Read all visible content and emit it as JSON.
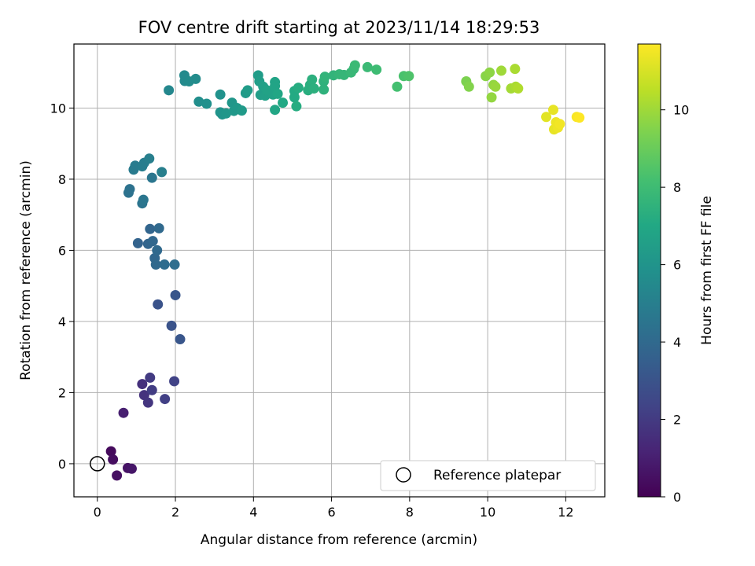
{
  "chart_data": {
    "type": "scatter",
    "title": "FOV centre drift starting at 2023/11/14 18:29:53",
    "xlabel": "Angular distance from reference (arcmin)",
    "ylabel": "Rotation from reference (arcmin)",
    "xlim": [
      -0.6,
      13.0
    ],
    "ylim": [
      -0.93,
      11.8
    ],
    "xticks": [
      0,
      2,
      4,
      6,
      8,
      10,
      12
    ],
    "yticks": [
      0,
      2,
      4,
      6,
      8,
      10
    ],
    "grid": true,
    "legend": {
      "placement": "lower-right",
      "entries": [
        "Reference platepar"
      ]
    },
    "colorbar": {
      "label": "Hours from first FF file",
      "range": [
        0,
        11.7
      ],
      "ticks": [
        0,
        2,
        4,
        6,
        8,
        10
      ],
      "colormap": "viridis"
    },
    "reference_point": {
      "x": 0,
      "y": 0
    },
    "series": [
      {
        "points": [
          [
            0.35,
            0.35,
            0.3
          ],
          [
            0.4,
            0.12,
            0.4
          ],
          [
            0.5,
            -0.33,
            0.5
          ],
          [
            0.78,
            -0.12,
            0.6
          ],
          [
            0.88,
            -0.14,
            0.7
          ],
          [
            0.67,
            1.43,
            1.0
          ],
          [
            1.15,
            2.24,
            1.6
          ],
          [
            1.2,
            1.93,
            1.7
          ],
          [
            1.3,
            1.72,
            1.8
          ],
          [
            1.35,
            2.42,
            2.0
          ],
          [
            1.4,
            2.07,
            2.1
          ],
          [
            1.73,
            1.82,
            2.2
          ],
          [
            1.97,
            2.32,
            2.3
          ],
          [
            1.55,
            4.48,
            3.0
          ],
          [
            1.9,
            3.88,
            3.0
          ],
          [
            2.0,
            4.74,
            3.1
          ],
          [
            2.12,
            3.5,
            3.1
          ],
          [
            1.04,
            6.2,
            3.7
          ],
          [
            1.3,
            6.18,
            3.8
          ],
          [
            1.35,
            6.6,
            3.8
          ],
          [
            1.42,
            6.26,
            3.9
          ],
          [
            1.47,
            5.78,
            3.9
          ],
          [
            1.5,
            5.6,
            4.0
          ],
          [
            1.53,
            6.0,
            4.0
          ],
          [
            1.58,
            6.62,
            4.0
          ],
          [
            1.72,
            5.6,
            4.1
          ],
          [
            1.98,
            5.6,
            4.2
          ],
          [
            0.8,
            7.62,
            4.4
          ],
          [
            0.83,
            7.72,
            4.4
          ],
          [
            1.15,
            7.32,
            4.5
          ],
          [
            1.18,
            7.42,
            4.6
          ],
          [
            1.4,
            8.04,
            4.6
          ],
          [
            0.93,
            8.27,
            4.8
          ],
          [
            0.97,
            8.38,
            4.8
          ],
          [
            1.15,
            8.36,
            4.9
          ],
          [
            1.2,
            8.46,
            4.9
          ],
          [
            1.33,
            8.58,
            5.0
          ],
          [
            1.65,
            8.2,
            5.0
          ],
          [
            1.83,
            10.5,
            5.4
          ],
          [
            2.23,
            10.92,
            5.5
          ],
          [
            2.24,
            10.76,
            5.5
          ],
          [
            2.35,
            10.75,
            5.6
          ],
          [
            2.52,
            10.82,
            5.6
          ],
          [
            2.6,
            10.18,
            5.7
          ],
          [
            2.8,
            10.12,
            5.8
          ],
          [
            3.15,
            10.38,
            5.9
          ],
          [
            3.15,
            9.88,
            6.0
          ],
          [
            3.2,
            9.82,
            6.0
          ],
          [
            3.3,
            9.85,
            6.1
          ],
          [
            3.45,
            10.15,
            6.1
          ],
          [
            3.5,
            9.92,
            6.2
          ],
          [
            3.58,
            10.0,
            6.2
          ],
          [
            3.7,
            9.93,
            6.3
          ],
          [
            3.8,
            10.42,
            6.3
          ],
          [
            3.85,
            10.5,
            6.4
          ],
          [
            4.12,
            10.92,
            6.4
          ],
          [
            4.15,
            10.75,
            6.5
          ],
          [
            4.18,
            10.37,
            6.5
          ],
          [
            4.25,
            10.6,
            6.6
          ],
          [
            4.3,
            10.35,
            6.6
          ],
          [
            4.35,
            10.5,
            6.7
          ],
          [
            4.5,
            10.38,
            6.7
          ],
          [
            4.55,
            10.73,
            6.8
          ],
          [
            4.55,
            10.62,
            6.8
          ],
          [
            4.55,
            9.95,
            6.9
          ],
          [
            4.62,
            10.4,
            6.9
          ],
          [
            4.75,
            10.15,
            7.0
          ],
          [
            5.05,
            10.48,
            7.1
          ],
          [
            5.05,
            10.3,
            7.1
          ],
          [
            5.1,
            10.05,
            7.2
          ],
          [
            5.15,
            10.57,
            7.2
          ],
          [
            5.4,
            10.5,
            7.3
          ],
          [
            5.45,
            10.65,
            7.3
          ],
          [
            5.5,
            10.8,
            7.4
          ],
          [
            5.55,
            10.55,
            7.4
          ],
          [
            5.8,
            10.52,
            7.5
          ],
          [
            5.8,
            10.75,
            7.5
          ],
          [
            5.83,
            10.88,
            7.6
          ],
          [
            6.05,
            10.92,
            7.6
          ],
          [
            6.2,
            10.95,
            7.7
          ],
          [
            6.32,
            10.93,
            7.7
          ],
          [
            6.5,
            11.0,
            7.8
          ],
          [
            6.57,
            11.1,
            7.8
          ],
          [
            6.6,
            11.2,
            7.9
          ],
          [
            6.92,
            11.15,
            7.9
          ],
          [
            7.15,
            11.08,
            8.0
          ],
          [
            7.68,
            10.6,
            8.2
          ],
          [
            7.85,
            10.9,
            8.3
          ],
          [
            7.98,
            10.9,
            8.4
          ],
          [
            9.45,
            10.75,
            9.4
          ],
          [
            9.52,
            10.6,
            9.5
          ],
          [
            9.95,
            10.9,
            9.6
          ],
          [
            10.05,
            11.0,
            9.7
          ],
          [
            10.1,
            10.3,
            9.8
          ],
          [
            10.15,
            10.65,
            9.8
          ],
          [
            10.2,
            10.6,
            9.9
          ],
          [
            10.35,
            11.05,
            10.0
          ],
          [
            10.6,
            10.55,
            10.1
          ],
          [
            10.7,
            11.1,
            10.2
          ],
          [
            10.72,
            10.6,
            10.2
          ],
          [
            10.78,
            10.55,
            10.3
          ],
          [
            11.5,
            9.75,
            11.2
          ],
          [
            11.68,
            9.95,
            11.3
          ],
          [
            11.7,
            9.4,
            11.3
          ],
          [
            11.75,
            9.6,
            11.4
          ],
          [
            11.8,
            9.45,
            11.4
          ],
          [
            11.85,
            9.55,
            11.5
          ],
          [
            12.28,
            9.75,
            11.6
          ],
          [
            12.35,
            9.73,
            11.7
          ]
        ]
      }
    ]
  }
}
